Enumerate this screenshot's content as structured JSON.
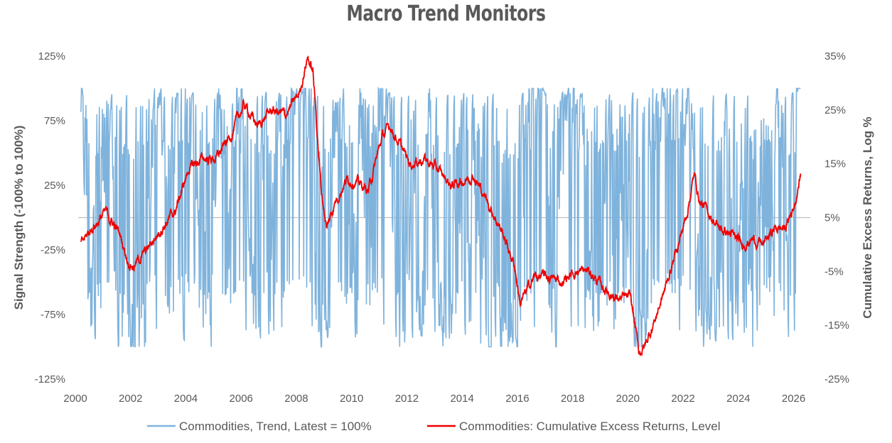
{
  "chart_data": {
    "type": "line",
    "title": "Macro Trend Monitors",
    "x_axis": {
      "range": [
        2000,
        2026.5
      ],
      "ticks": [
        "2000",
        "2002",
        "2004",
        "2006",
        "2008",
        "2010",
        "2012",
        "2014",
        "2016",
        "2018",
        "2020",
        "2022",
        "2024",
        "2026"
      ]
    },
    "y_left": {
      "label": "Signal Strength (-100% to 100%)",
      "range": [
        -125,
        125
      ],
      "ticks": [
        "125%",
        "75%",
        "25%",
        "-25%",
        "-75%",
        "-125%"
      ]
    },
    "y_right": {
      "label": "Cumulative Excess Returns, Log %",
      "range": [
        -25,
        35
      ],
      "ticks": [
        "35%",
        "25%",
        "15%",
        "5%",
        "-5%",
        "-15%",
        "-25%"
      ]
    },
    "grid": false,
    "legend_position": "bottom",
    "series": [
      {
        "name": "Commodities, Trend, Latest = 100%",
        "axis": "left",
        "color": "#7FB3DC",
        "note_keyframes_trend": [
          [
            2000.1,
            95
          ],
          [
            2000.4,
            -40
          ],
          [
            2000.7,
            90
          ],
          [
            2001.0,
            -20
          ],
          [
            2001.2,
            60
          ],
          [
            2001.4,
            -95
          ],
          [
            2001.8,
            -100
          ],
          [
            2002.1,
            -85
          ],
          [
            2002.4,
            -100
          ],
          [
            2002.8,
            95
          ],
          [
            2003.1,
            60
          ],
          [
            2003.3,
            -60
          ],
          [
            2003.6,
            95
          ],
          [
            2004.0,
            95
          ],
          [
            2004.2,
            -40
          ],
          [
            2004.5,
            90
          ],
          [
            2004.8,
            -80
          ],
          [
            2005.1,
            95
          ],
          [
            2005.4,
            -30
          ],
          [
            2005.7,
            95
          ],
          [
            2006.0,
            80
          ],
          [
            2006.3,
            -70
          ],
          [
            2006.6,
            90
          ],
          [
            2006.9,
            -90
          ],
          [
            2007.2,
            95
          ],
          [
            2007.5,
            40
          ],
          [
            2007.8,
            95
          ],
          [
            2008.2,
            95
          ],
          [
            2008.5,
            90
          ],
          [
            2008.7,
            -100
          ],
          [
            2009.0,
            -100
          ],
          [
            2009.3,
            60
          ],
          [
            2009.6,
            95
          ],
          [
            2009.9,
            -60
          ],
          [
            2010.2,
            95
          ],
          [
            2010.5,
            -80
          ],
          [
            2010.8,
            95
          ],
          [
            2011.2,
            95
          ],
          [
            2011.5,
            -60
          ],
          [
            2011.8,
            -90
          ],
          [
            2012.1,
            60
          ],
          [
            2012.4,
            -80
          ],
          [
            2012.7,
            95
          ],
          [
            2013.0,
            -70
          ],
          [
            2013.4,
            -95
          ],
          [
            2013.7,
            20
          ],
          [
            2014.0,
            -90
          ],
          [
            2014.3,
            70
          ],
          [
            2014.6,
            -95
          ],
          [
            2015.0,
            -100
          ],
          [
            2015.5,
            -95
          ],
          [
            2016.0,
            -100
          ],
          [
            2016.3,
            90
          ],
          [
            2016.7,
            95
          ],
          [
            2017.0,
            60
          ],
          [
            2017.3,
            -90
          ],
          [
            2017.6,
            70
          ],
          [
            2017.9,
            95
          ],
          [
            2018.3,
            90
          ],
          [
            2018.6,
            -70
          ],
          [
            2018.9,
            -100
          ],
          [
            2019.2,
            60
          ],
          [
            2019.5,
            -90
          ],
          [
            2019.8,
            40
          ],
          [
            2020.1,
            -100
          ],
          [
            2020.5,
            -100
          ],
          [
            2020.8,
            90
          ],
          [
            2021.2,
            95
          ],
          [
            2021.6,
            95
          ],
          [
            2022.0,
            95
          ],
          [
            2022.3,
            60
          ],
          [
            2022.6,
            -100
          ],
          [
            2022.9,
            -60
          ],
          [
            2023.2,
            -90
          ],
          [
            2023.5,
            70
          ],
          [
            2023.8,
            -80
          ],
          [
            2024.1,
            95
          ],
          [
            2024.4,
            -100
          ],
          [
            2024.7,
            40
          ],
          [
            2025.0,
            -90
          ],
          [
            2025.3,
            95
          ],
          [
            2025.6,
            -20
          ],
          [
            2025.9,
            95
          ],
          [
            2026.15,
            100
          ]
        ]
      },
      {
        "name": "Commodities: Cumulative Excess Returns, Level",
        "axis": "right",
        "color": "#EE0000",
        "note_keyframes_returns": [
          [
            2000.1,
            0
          ],
          [
            2000.5,
            3
          ],
          [
            2001.0,
            6
          ],
          [
            2001.5,
            2
          ],
          [
            2001.8,
            -3
          ],
          [
            2002.0,
            -4
          ],
          [
            2002.5,
            -1
          ],
          [
            2003.0,
            3
          ],
          [
            2003.5,
            6
          ],
          [
            2004.0,
            14
          ],
          [
            2004.5,
            16
          ],
          [
            2005.0,
            16
          ],
          [
            2005.5,
            20
          ],
          [
            2006.0,
            26
          ],
          [
            2006.5,
            22
          ],
          [
            2007.0,
            25
          ],
          [
            2007.5,
            24
          ],
          [
            2008.0,
            28
          ],
          [
            2008.3,
            35
          ],
          [
            2008.5,
            32
          ],
          [
            2008.8,
            10
          ],
          [
            2009.0,
            3
          ],
          [
            2009.3,
            8
          ],
          [
            2009.7,
            12
          ],
          [
            2010.0,
            12
          ],
          [
            2010.5,
            10
          ],
          [
            2011.0,
            20
          ],
          [
            2011.3,
            22
          ],
          [
            2011.6,
            19
          ],
          [
            2012.0,
            15
          ],
          [
            2012.5,
            16
          ],
          [
            2013.0,
            14
          ],
          [
            2013.5,
            11
          ],
          [
            2014.0,
            12
          ],
          [
            2014.3,
            13
          ],
          [
            2014.8,
            8
          ],
          [
            2015.3,
            3
          ],
          [
            2015.8,
            -4
          ],
          [
            2016.0,
            -11
          ],
          [
            2016.5,
            -6
          ],
          [
            2017.0,
            -6
          ],
          [
            2017.5,
            -7
          ],
          [
            2018.0,
            -5
          ],
          [
            2018.5,
            -5
          ],
          [
            2019.0,
            -8
          ],
          [
            2019.5,
            -10
          ],
          [
            2020.0,
            -10
          ],
          [
            2020.3,
            -20
          ],
          [
            2020.5,
            -19
          ],
          [
            2020.8,
            -15
          ],
          [
            2021.2,
            -9
          ],
          [
            2021.6,
            -2
          ],
          [
            2022.0,
            5
          ],
          [
            2022.3,
            13
          ],
          [
            2022.5,
            8
          ],
          [
            2022.8,
            6
          ],
          [
            2023.2,
            3
          ],
          [
            2023.6,
            2
          ],
          [
            2024.0,
            0
          ],
          [
            2024.4,
            1
          ],
          [
            2024.8,
            0
          ],
          [
            2025.2,
            3
          ],
          [
            2025.6,
            3
          ],
          [
            2025.9,
            7
          ],
          [
            2026.0,
            9
          ],
          [
            2026.15,
            13
          ]
        ]
      }
    ]
  }
}
